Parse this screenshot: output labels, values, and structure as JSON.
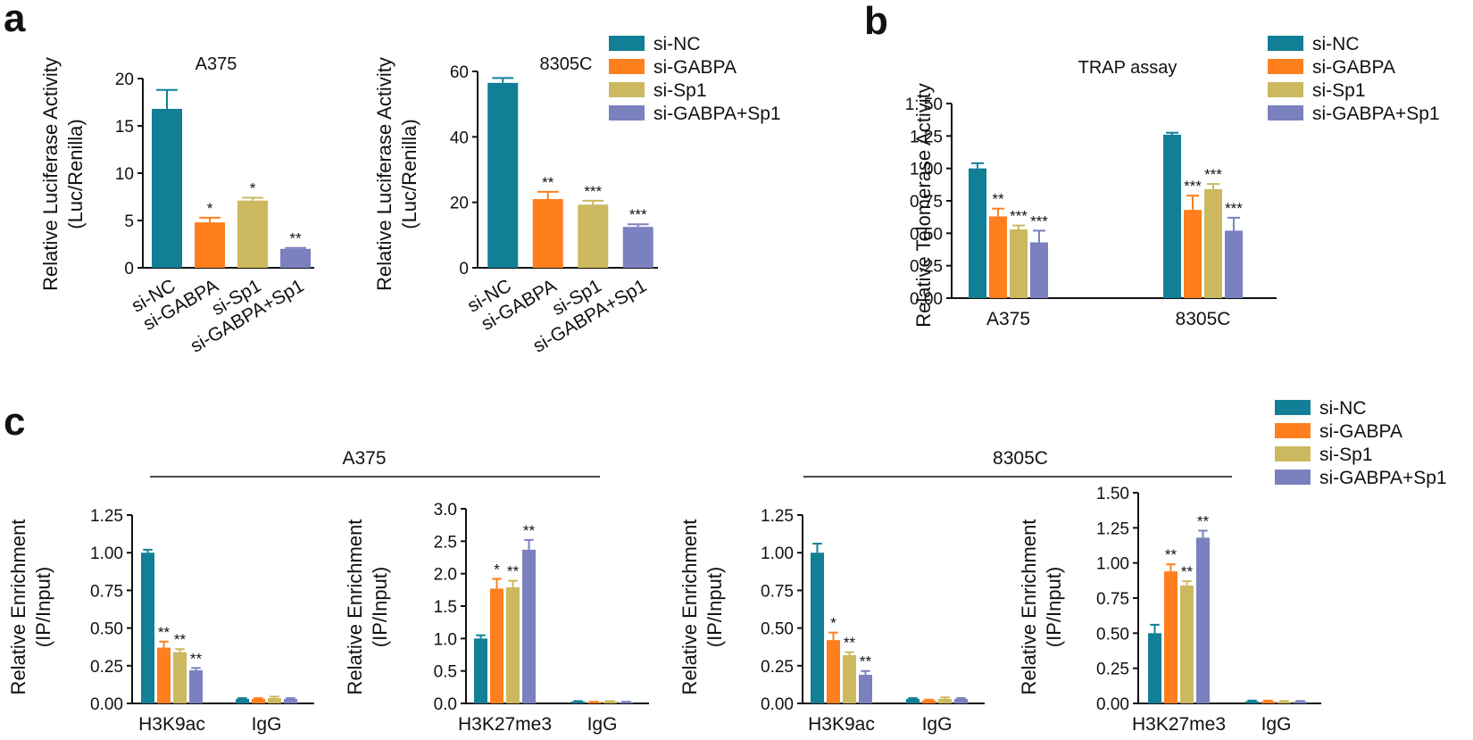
{
  "panel_letters": [
    "a",
    "b",
    "c"
  ],
  "groups": {
    "left": "A375",
    "right": "8305C"
  },
  "colors": {
    "si-NC": "#117f96",
    "si-GABPA": "#ff7f1e",
    "si-Sp1": "#ccb85f",
    "si-GABPA+Sp1": "#7b80bf"
  },
  "legend": [
    "si-NC",
    "si-GABPA",
    "si-Sp1",
    "si-GABPA+Sp1"
  ],
  "chart_data": [
    {
      "id": "a1",
      "type": "bar",
      "title": "A375",
      "ylabel": [
        "Relative Luciferase Activity",
        "(Luc/Renilla)"
      ],
      "categories": [
        "si-NC",
        "si-GABPA",
        "si-Sp1",
        "si-GABPA+Sp1"
      ],
      "values": [
        16.8,
        4.8,
        7.1,
        2.0
      ],
      "errors": [
        2.0,
        0.5,
        0.3,
        0.1
      ],
      "significance": [
        "",
        "*",
        "*",
        "**"
      ],
      "ylim": [
        0,
        20
      ],
      "yticks": [
        "0",
        "5",
        "10",
        "15",
        "20"
      ]
    },
    {
      "id": "a2",
      "type": "bar",
      "title": "8305C",
      "ylabel": [
        "Relative Luciferase Activity",
        "(Luc/Renilla)"
      ],
      "categories": [
        "si-NC",
        "si-GABPA",
        "si-Sp1",
        "si-GABPA+Sp1"
      ],
      "values": [
        56.5,
        21.0,
        19.3,
        12.5
      ],
      "errors": [
        1.5,
        2.2,
        1.2,
        0.8
      ],
      "significance": [
        "",
        "**",
        "***",
        "***"
      ],
      "ylim": [
        0,
        60
      ],
      "yticks": [
        "0",
        "20",
        "40",
        "60"
      ]
    },
    {
      "id": "b",
      "type": "bar",
      "title": "TRAP assay",
      "ylabel": [
        "Relative Telomerase Activity"
      ],
      "categories": [
        "A375",
        "8305C"
      ],
      "series": [
        {
          "name": "si-NC",
          "values": [
            1.0,
            1.26
          ],
          "errors": [
            0.04,
            0.015
          ],
          "significance": [
            "",
            ""
          ]
        },
        {
          "name": "si-GABPA",
          "values": [
            0.63,
            0.68
          ],
          "errors": [
            0.06,
            0.11
          ],
          "significance": [
            "**",
            "***"
          ]
        },
        {
          "name": "si-Sp1",
          "values": [
            0.53,
            0.84
          ],
          "errors": [
            0.03,
            0.04
          ],
          "significance": [
            "***",
            "***"
          ]
        },
        {
          "name": "si-GABPA+Sp1",
          "values": [
            0.43,
            0.52
          ],
          "errors": [
            0.09,
            0.1
          ],
          "significance": [
            "***",
            "***"
          ]
        }
      ],
      "ylim": [
        0,
        1.5
      ],
      "yticks": [
        "0.00",
        "0.25",
        "0.50",
        "0.75",
        "1.00",
        "1.25",
        "1. 50"
      ]
    },
    {
      "id": "c1",
      "type": "bar",
      "title": "",
      "ylabel": [
        "Relative Enrichment",
        "(IP/Input)"
      ],
      "categories": [
        "H3K9ac",
        "IgG"
      ],
      "series": [
        {
          "name": "si-NC",
          "values": [
            1.0,
            0.03
          ],
          "errors": [
            0.02,
            0.005
          ],
          "significance": [
            "",
            ""
          ]
        },
        {
          "name": "si-GABPA",
          "values": [
            0.37,
            0.03
          ],
          "errors": [
            0.04,
            0.005
          ],
          "significance": [
            "**",
            ""
          ]
        },
        {
          "name": "si-Sp1",
          "values": [
            0.34,
            0.035
          ],
          "errors": [
            0.02,
            0.01
          ],
          "significance": [
            "**",
            ""
          ]
        },
        {
          "name": "si-GABPA+Sp1",
          "values": [
            0.22,
            0.03
          ],
          "errors": [
            0.015,
            0.005
          ],
          "significance": [
            "**",
            ""
          ]
        }
      ],
      "ylim": [
        0,
        1.25
      ],
      "yticks": [
        "0.00",
        "0.25",
        "0.50",
        "0.75",
        "1.00",
        "1.25"
      ]
    },
    {
      "id": "c2",
      "type": "bar",
      "title": "",
      "ylabel": [
        "Relative Enrichment",
        "(IP/Input)"
      ],
      "categories": [
        "H3K27me3",
        "IgG"
      ],
      "series": [
        {
          "name": "si-NC",
          "values": [
            1.0,
            0.03
          ],
          "errors": [
            0.05,
            0.005
          ],
          "significance": [
            "",
            ""
          ]
        },
        {
          "name": "si-GABPA",
          "values": [
            1.77,
            0.02
          ],
          "errors": [
            0.15,
            0.005
          ],
          "significance": [
            "*",
            ""
          ]
        },
        {
          "name": "si-Sp1",
          "values": [
            1.79,
            0.03
          ],
          "errors": [
            0.1,
            0.005
          ],
          "significance": [
            "**",
            ""
          ]
        },
        {
          "name": "si-GABPA+Sp1",
          "values": [
            2.37,
            0.02
          ],
          "errors": [
            0.15,
            0.005
          ],
          "significance": [
            "**",
            ""
          ]
        }
      ],
      "ylim": [
        0,
        3.0
      ],
      "yticks": [
        "0.0",
        "0.5",
        "1.0",
        "1.5",
        "2.0",
        "2.5",
        "3.0"
      ]
    },
    {
      "id": "c3",
      "type": "bar",
      "title": "",
      "ylabel": [
        "Relative Enrichment",
        "(IP/Input)"
      ],
      "categories": [
        "H3K9ac",
        "IgG"
      ],
      "series": [
        {
          "name": "si-NC",
          "values": [
            1.0,
            0.03
          ],
          "errors": [
            0.06,
            0.005
          ],
          "significance": [
            "",
            ""
          ]
        },
        {
          "name": "si-GABPA",
          "values": [
            0.42,
            0.02
          ],
          "errors": [
            0.05,
            0.005
          ],
          "significance": [
            "*",
            ""
          ]
        },
        {
          "name": "si-Sp1",
          "values": [
            0.32,
            0.03
          ],
          "errors": [
            0.02,
            0.01
          ],
          "significance": [
            "**",
            ""
          ]
        },
        {
          "name": "si-GABPA+Sp1",
          "values": [
            0.19,
            0.03
          ],
          "errors": [
            0.025,
            0.005
          ],
          "significance": [
            "**",
            ""
          ]
        }
      ],
      "ylim": [
        0,
        1.25
      ],
      "yticks": [
        "0.00",
        "0.25",
        "0.50",
        "0.75",
        "1.00",
        "1.25"
      ]
    },
    {
      "id": "c4",
      "type": "bar",
      "title": "",
      "ylabel": [
        "Relative Enrichment",
        "(IP/Input)"
      ],
      "categories": [
        "H3K27me3",
        "IgG"
      ],
      "series": [
        {
          "name": "si-NC",
          "values": [
            0.5,
            0.015
          ],
          "errors": [
            0.06,
            0.005
          ],
          "significance": [
            "",
            ""
          ]
        },
        {
          "name": "si-GABPA",
          "values": [
            0.94,
            0.015
          ],
          "errors": [
            0.05,
            0.005
          ],
          "significance": [
            "**",
            ""
          ]
        },
        {
          "name": "si-Sp1",
          "values": [
            0.84,
            0.012
          ],
          "errors": [
            0.03,
            0.005
          ],
          "significance": [
            "**",
            ""
          ]
        },
        {
          "name": "si-GABPA+Sp1",
          "values": [
            1.18,
            0.012
          ],
          "errors": [
            0.05,
            0.005
          ],
          "significance": [
            "**",
            ""
          ]
        }
      ],
      "ylim": [
        0,
        1.5
      ],
      "yticks": [
        "0.00",
        "0.25",
        "0.50",
        "0.75",
        "1.00",
        "1.25",
        "1.50"
      ]
    }
  ]
}
